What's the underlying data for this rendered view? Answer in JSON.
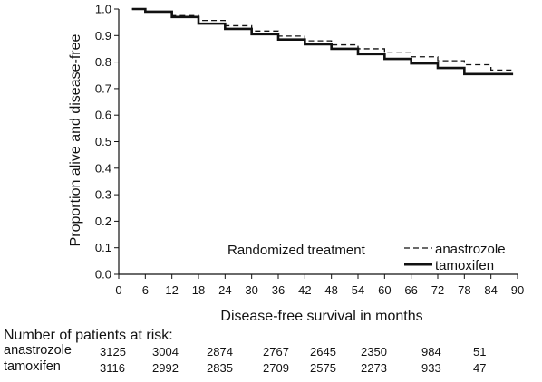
{
  "chart_data": {
    "type": "line",
    "title": "",
    "xlabel": "Disease-free survival in months",
    "ylabel": "Proportion alive and disease-free",
    "xlim": [
      0,
      90
    ],
    "ylim": [
      0.0,
      1.0
    ],
    "xticks": [
      0,
      6,
      12,
      18,
      24,
      30,
      36,
      42,
      48,
      54,
      60,
      66,
      72,
      78,
      84,
      90
    ],
    "yticks": [
      "0.0",
      "0.1",
      "0.2",
      "0.3",
      "0.4",
      "0.5",
      "0.6",
      "0.7",
      "0.8",
      "0.9",
      "1.0"
    ],
    "grid": false,
    "legend": {
      "title": "Randomized treatment",
      "placement": "bottom-right"
    },
    "series": [
      {
        "name": "anastrozole",
        "style": "dashed",
        "x": [
          3,
          6,
          12,
          18,
          24,
          30,
          36,
          42,
          48,
          54,
          60,
          66,
          72,
          78,
          84,
          89
        ],
        "y": [
          1.0,
          0.99,
          0.975,
          0.957,
          0.937,
          0.917,
          0.898,
          0.88,
          0.865,
          0.85,
          0.835,
          0.82,
          0.805,
          0.79,
          0.77,
          0.772
        ]
      },
      {
        "name": "tamoxifen",
        "style": "solid",
        "x": [
          3,
          6,
          12,
          18,
          24,
          30,
          36,
          42,
          48,
          54,
          60,
          66,
          72,
          78,
          84,
          89
        ],
        "y": [
          1.0,
          0.99,
          0.97,
          0.945,
          0.925,
          0.905,
          0.885,
          0.867,
          0.85,
          0.83,
          0.812,
          0.795,
          0.778,
          0.755,
          0.755,
          0.755
        ]
      }
    ]
  },
  "risk_table": {
    "title": "Number of patients at risk:",
    "rows": [
      {
        "label": "anastrozole",
        "values": [
          "3125",
          "3004",
          "2874",
          "2767",
          "2645",
          "2350",
          "984",
          "51"
        ]
      },
      {
        "label": "tamoxifen",
        "values": [
          "3116",
          "2992",
          "2835",
          "2709",
          "2575",
          "2273",
          "933",
          "47"
        ]
      }
    ]
  },
  "colors": {
    "line": "#111111",
    "background": "#ffffff"
  }
}
